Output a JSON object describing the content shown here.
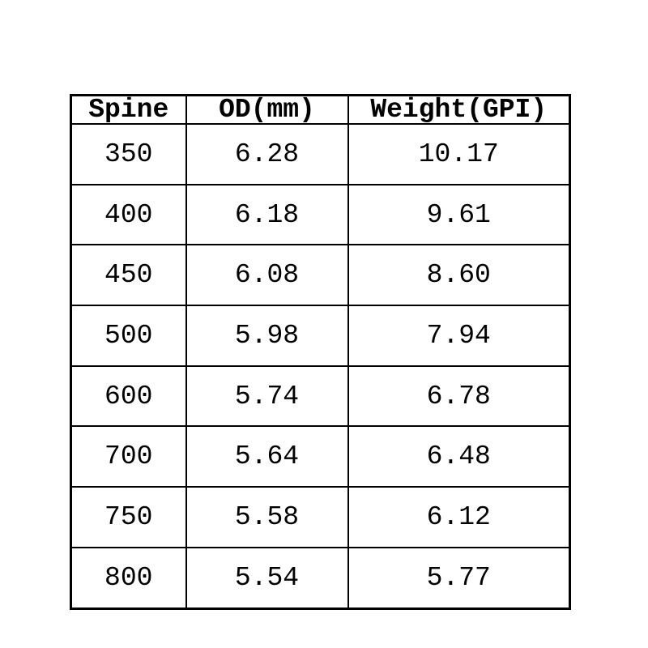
{
  "page": {
    "background": "#ffffff",
    "text_color": "#000000",
    "border_color": "#000000"
  },
  "table": {
    "columns": [
      "Spine",
      "OD(mm)",
      "Weight(GPI)"
    ],
    "rows": [
      [
        "350",
        "6.28",
        "10.17"
      ],
      [
        "400",
        "6.18",
        "9.61"
      ],
      [
        "450",
        "6.08",
        "8.60"
      ],
      [
        "500",
        "5.98",
        "7.94"
      ],
      [
        "600",
        "5.74",
        "6.78"
      ],
      [
        "700",
        "5.64",
        "6.48"
      ],
      [
        "750",
        "5.58",
        "6.12"
      ],
      [
        "800",
        "5.54",
        "5.77"
      ]
    ]
  },
  "chart_data": {
    "type": "table",
    "title": "",
    "columns": [
      "Spine",
      "OD(mm)",
      "Weight(GPI)"
    ],
    "rows": [
      [
        350,
        6.28,
        10.17
      ],
      [
        400,
        6.18,
        9.61
      ],
      [
        450,
        6.08,
        8.6
      ],
      [
        500,
        5.98,
        7.94
      ],
      [
        600,
        5.74,
        6.78
      ],
      [
        700,
        5.64,
        6.48
      ],
      [
        750,
        5.58,
        6.12
      ],
      [
        800,
        5.54,
        5.77
      ]
    ]
  }
}
